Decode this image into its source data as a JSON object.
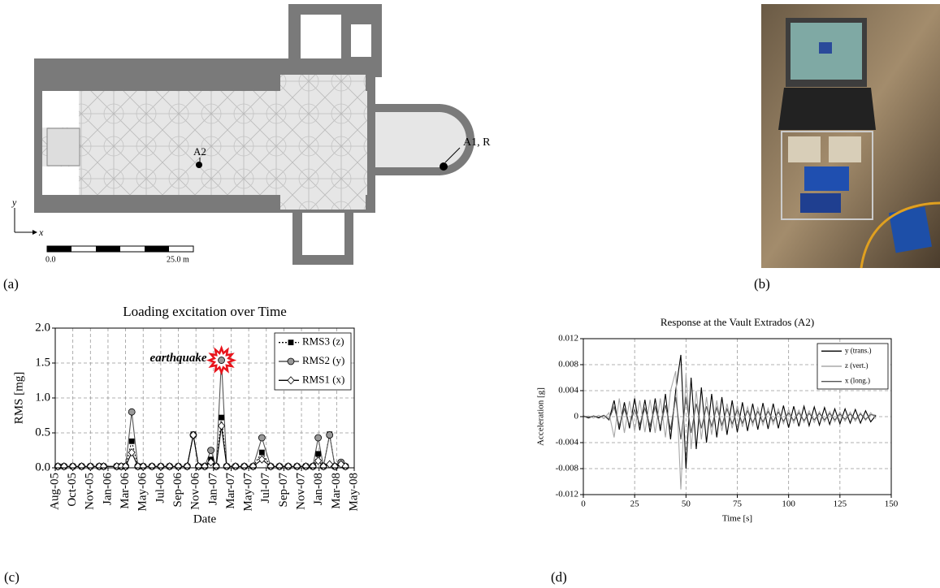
{
  "figure_a": {
    "label": "(a)",
    "sensors": [
      "A2",
      "A1, R"
    ],
    "axes": [
      "y",
      "x"
    ],
    "scale": [
      "0.0",
      "25.0 m"
    ]
  },
  "figure_b": {
    "label": "(b)"
  },
  "chart_data": [
    {
      "type": "line",
      "panel_label": "(c)",
      "title": "Loading excitation over Time",
      "xlabel": "Date",
      "ylabel": "RMS [mg]",
      "annotation": "earthquake",
      "annotation_color": "#e8141c",
      "x": [
        0.3,
        1,
        2,
        3,
        4,
        5,
        5.5,
        7,
        7.5,
        8,
        8.7,
        9.4,
        10,
        11,
        12,
        13,
        14,
        15,
        15.7,
        16.3,
        17,
        17.7,
        18.3,
        18.9,
        19.5,
        20.5,
        21.5,
        22.5,
        23.5,
        24.5,
        25.5,
        26.5,
        27.5,
        28.5,
        29.3,
        29.9,
        30.5,
        31.2,
        31.8,
        32.5,
        33
      ],
      "series": [
        {
          "name": "RMS3 (z)",
          "color": "#000000",
          "dash": "2,2",
          "marker": "square",
          "marker_fill": "#000000",
          "values": [
            0.02,
            0.02,
            0.02,
            0.02,
            0.02,
            0.02,
            0.02,
            0.02,
            0.02,
            0.02,
            0.38,
            0.02,
            0.02,
            0.02,
            0.02,
            0.02,
            0.02,
            0.02,
            0.48,
            0.02,
            0.02,
            0.12,
            0.02,
            0.72,
            0.02,
            0.02,
            0.02,
            0.02,
            0.22,
            0.02,
            0.02,
            0.02,
            0.02,
            0.02,
            0.02,
            0.2,
            0.02,
            0.48,
            0.02,
            0.06,
            0.02
          ]
        },
        {
          "name": "RMS2 (y)",
          "color": "#555555",
          "dash": "none",
          "marker": "circle",
          "marker_fill": "#999999",
          "values": [
            0.02,
            0.02,
            0.02,
            0.02,
            0.02,
            0.02,
            0.02,
            0.02,
            0.02,
            0.02,
            0.8,
            0.02,
            0.02,
            0.02,
            0.02,
            0.02,
            0.02,
            0.02,
            0.47,
            0.02,
            0.02,
            0.25,
            0.02,
            1.54,
            0.02,
            0.02,
            0.02,
            0.02,
            0.43,
            0.02,
            0.02,
            0.02,
            0.02,
            0.02,
            0.02,
            0.43,
            0.02,
            0.47,
            0.02,
            0.08,
            0.02
          ]
        },
        {
          "name": "RMS1 (x)",
          "color": "#000000",
          "dash": "none",
          "marker": "diamond",
          "marker_fill": "#ffffff",
          "values": [
            0.02,
            0.02,
            0.02,
            0.02,
            0.02,
            0.02,
            0.02,
            0.02,
            0.02,
            0.02,
            0.22,
            0.02,
            0.02,
            0.02,
            0.02,
            0.02,
            0.02,
            0.02,
            0.47,
            0.02,
            0.02,
            0.08,
            0.02,
            0.6,
            0.02,
            0.02,
            0.02,
            0.02,
            0.12,
            0.02,
            0.02,
            0.02,
            0.02,
            0.02,
            0.02,
            0.1,
            0.02,
            0.05,
            0.02,
            0.05,
            0.02
          ]
        }
      ],
      "xlim": [
        0,
        34
      ],
      "xticks": [
        {
          "value": 0,
          "label": "Aug-05"
        },
        {
          "value": 2,
          "label": "Oct-05"
        },
        {
          "value": 4,
          "label": "Nov-05"
        },
        {
          "value": 6,
          "label": "Jan-06"
        },
        {
          "value": 8,
          "label": "Mar-06"
        },
        {
          "value": 10,
          "label": "May-06"
        },
        {
          "value": 12,
          "label": "Jul-06"
        },
        {
          "value": 14,
          "label": "Sep-06"
        },
        {
          "value": 16,
          "label": "Nov-06"
        },
        {
          "value": 18,
          "label": "Jan-07"
        },
        {
          "value": 20,
          "label": "Mar-07"
        },
        {
          "value": 22,
          "label": "May-07"
        },
        {
          "value": 24,
          "label": "Jul-07"
        },
        {
          "value": 26,
          "label": "Sep-07"
        },
        {
          "value": 28,
          "label": "Nov-07"
        },
        {
          "value": 30,
          "label": "Jan-08"
        },
        {
          "value": 32,
          "label": "Mar-08"
        },
        {
          "value": 34,
          "label": "May-08"
        }
      ],
      "ylim": [
        0,
        2
      ],
      "yticks": [
        {
          "value": 0,
          "label": "0.0"
        },
        0.5,
        {
          "value": 1,
          "label": "1.0"
        },
        1.5,
        {
          "value": 2,
          "label": "2.0"
        }
      ],
      "grid": true,
      "legend": "upper right"
    },
    {
      "type": "line",
      "panel_label": "(d)",
      "title": "Response at the Vault Extrados (A2)",
      "xlabel": "Time [s]",
      "ylabel": "Acceleration [g]",
      "x": [
        0,
        2.5,
        5,
        7.5,
        10,
        12.5,
        15,
        17.5,
        20,
        22.5,
        25,
        27.5,
        30,
        32.5,
        35,
        37.5,
        40,
        42.5,
        45,
        47.5,
        50,
        52.5,
        55,
        57.5,
        60,
        62.5,
        65,
        67.5,
        70,
        72.5,
        75,
        77.5,
        80,
        82.5,
        85,
        87.5,
        90,
        92.5,
        95,
        97.5,
        100,
        102.5,
        105,
        107.5,
        110,
        112.5,
        115,
        117.5,
        120,
        122.5,
        125,
        127.5,
        130,
        132.5,
        135,
        137.5,
        140,
        142.5
      ],
      "series": [
        {
          "name": "y (trans.)",
          "color": "#000000",
          "values": [
            0.0001,
            -0.0002,
            0.0001,
            -0.0002,
            0.0002,
            -0.0005,
            0.0025,
            -0.002,
            0.0022,
            -0.0018,
            0.0028,
            -0.0021,
            0.0026,
            -0.0024,
            0.0028,
            -0.0022,
            0.0035,
            -0.0035,
            0.004,
            0.0095,
            -0.008,
            0.006,
            -0.005,
            0.0045,
            -0.004,
            0.0035,
            -0.0032,
            0.003,
            -0.0028,
            0.0025,
            -0.0024,
            0.0022,
            -0.0022,
            0.002,
            -0.002,
            0.0021,
            -0.0019,
            0.002,
            -0.0018,
            0.0017,
            -0.0017,
            0.0016,
            -0.0015,
            0.0016,
            -0.0014,
            0.0015,
            -0.0013,
            0.0014,
            -0.0012,
            0.0012,
            -0.0011,
            0.0012,
            -0.001,
            0.0011,
            -0.001,
            0.0009,
            -0.0008,
            0.0002
          ]
        },
        {
          "name": "z (vert.)",
          "color": "#a8a8a8",
          "values": [
            -0.0001,
            0.0001,
            -0.0002,
            0.0002,
            -0.0003,
            0.0006,
            -0.0032,
            0.0028,
            -0.0025,
            0.0024,
            -0.0022,
            0.0025,
            -0.0024,
            0.0026,
            -0.0025,
            0.0028,
            -0.0032,
            0.004,
            0.007,
            -0.0112,
            0.0065,
            -0.005,
            0.004,
            -0.0035,
            0.003,
            -0.0028,
            0.0025,
            -0.0022,
            0.002,
            -0.0018,
            0.0017,
            -0.0016,
            0.0015,
            -0.0014,
            0.0014,
            -0.0013,
            0.0013,
            -0.0012,
            0.0012,
            -0.0011,
            0.0011,
            -0.001,
            0.001,
            -0.0009,
            0.0009,
            -0.0009,
            0.0008,
            -0.0008,
            0.0008,
            -0.0008,
            0.0007,
            -0.0007,
            0.0007,
            -0.0007,
            0.0006,
            -0.0006,
            0.0006,
            -0.0003
          ]
        },
        {
          "name": "x (long.)",
          "color": "#555555",
          "values": [
            0.0001,
            -0.0001,
            0.0001,
            -0.0001,
            0.0002,
            -0.0004,
            0.0015,
            -0.0014,
            0.0012,
            -0.0013,
            0.0011,
            -0.0012,
            0.0013,
            -0.0014,
            0.0015,
            -0.0016,
            0.0018,
            -0.002,
            0.003,
            -0.0035,
            0.003,
            -0.0025,
            0.002,
            -0.0018,
            0.0016,
            -0.0015,
            0.0014,
            -0.0013,
            0.0012,
            -0.0011,
            0.001,
            -0.001,
            0.0009,
            -0.0009,
            0.0008,
            -0.0008,
            0.0008,
            -0.0007,
            0.0007,
            -0.0007,
            0.0006,
            -0.0006,
            0.0006,
            -0.0006,
            0.0005,
            -0.0005,
            0.0005,
            -0.0005,
            0.0005,
            -0.0005,
            0.0004,
            -0.0004,
            0.0004,
            -0.0004,
            0.0004,
            -0.0004,
            0.0003,
            0.0002
          ]
        }
      ],
      "xlim": [
        0,
        150
      ],
      "xticks": [
        0,
        25,
        50,
        75,
        100,
        125,
        150
      ],
      "ylim": [
        -0.012,
        0.012
      ],
      "yticks": [
        -0.012,
        -0.008,
        -0.004,
        0,
        0.004,
        0.008,
        0.012
      ],
      "grid": true,
      "legend": "upper right"
    }
  ]
}
